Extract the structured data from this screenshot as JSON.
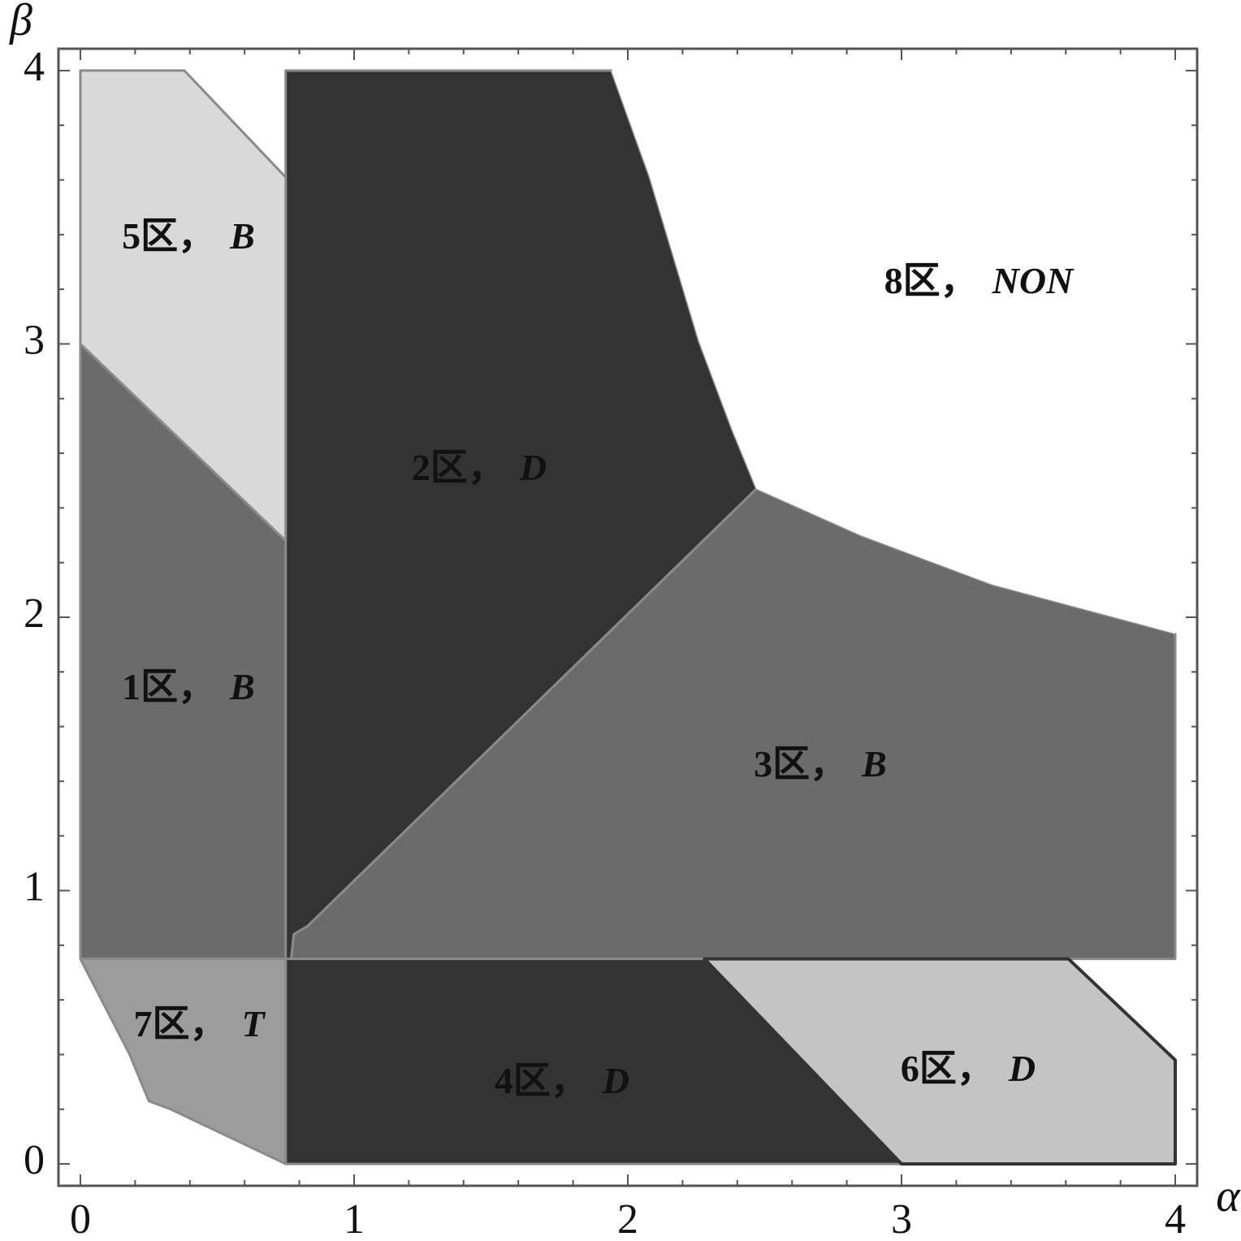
{
  "chart_data": {
    "type": "region",
    "x_label": "α",
    "y_label": "β",
    "xlim": [
      -0.08,
      4.08
    ],
    "ylim": [
      -0.08,
      4.08
    ],
    "xticks": [
      0,
      1,
      2,
      3,
      4
    ],
    "yticks": [
      0,
      1,
      2,
      3,
      4
    ],
    "xticks_minor": [
      0.2,
      0.4,
      0.6,
      0.8,
      1.2,
      1.4,
      1.6,
      1.8,
      2.2,
      2.4,
      2.6,
      2.8,
      3.2,
      3.4,
      3.6,
      3.8
    ],
    "yticks_minor": [
      0.2,
      0.4,
      0.6,
      0.8,
      1.2,
      1.4,
      1.6,
      1.8,
      2.2,
      2.4,
      2.6,
      2.8,
      3.2,
      3.4,
      3.6,
      3.8
    ],
    "regions": [
      {
        "name": "1区，",
        "code": "B",
        "color": "#6b6b6b",
        "x": [
          0,
          0.75,
          0.75,
          0
        ],
        "y": [
          3,
          2.28,
          0.75,
          0.75
        ]
      },
      {
        "name": "2区，",
        "code": "D",
        "color": "#333333",
        "x": [
          0.75,
          1.94,
          2.08,
          2.26,
          2.38,
          2.47,
          0.83,
          0.78,
          0.77,
          0.75
        ],
        "y": [
          4,
          4,
          3.61,
          3.01,
          2.69,
          2.47,
          0.87,
          0.84,
          0.75,
          0.75
        ]
      },
      {
        "name": "3区，",
        "code": "B",
        "color": "#6b6b6b",
        "x": [
          0.77,
          0.78,
          0.83,
          2.47,
          2.85,
          3.33,
          4,
          4
        ],
        "y": [
          0.75,
          0.84,
          0.87,
          2.47,
          2.3,
          2.12,
          1.94,
          0.75
        ]
      },
      {
        "name": "4区，",
        "code": "D",
        "color": "#333333",
        "x": [
          0.75,
          2.28,
          3,
          0.75
        ],
        "y": [
          0.75,
          0.75,
          0,
          0
        ]
      },
      {
        "name": "5区，",
        "code": "B",
        "color": "#d9d9d9",
        "x": [
          0,
          0.38,
          0.75,
          0.75,
          0
        ],
        "y": [
          4,
          4,
          3.61,
          2.28,
          3
        ]
      },
      {
        "name": "6区，",
        "code": "D",
        "color": "#c4c4c4",
        "x": [
          2.28,
          3.61,
          4,
          4,
          3
        ],
        "y": [
          0.75,
          0.75,
          0.38,
          0,
          0
        ]
      },
      {
        "name": "7区，",
        "code": "T",
        "color": "#9c9c9c",
        "x": [
          0,
          0.75,
          0.75,
          0.33,
          0.25,
          0.18
        ],
        "y": [
          0.75,
          0.75,
          0,
          0.2,
          0.23,
          0.4
        ]
      },
      {
        "name": "8区，",
        "code": "NON",
        "color": "#ffffff",
        "x": [
          1.94,
          4,
          4,
          3.33,
          2.85,
          2.47,
          2.38,
          2.26,
          2.08
        ],
        "y": [
          4,
          4,
          1.94,
          2.12,
          2.3,
          2.47,
          2.69,
          3.01,
          3.61
        ]
      }
    ]
  }
}
